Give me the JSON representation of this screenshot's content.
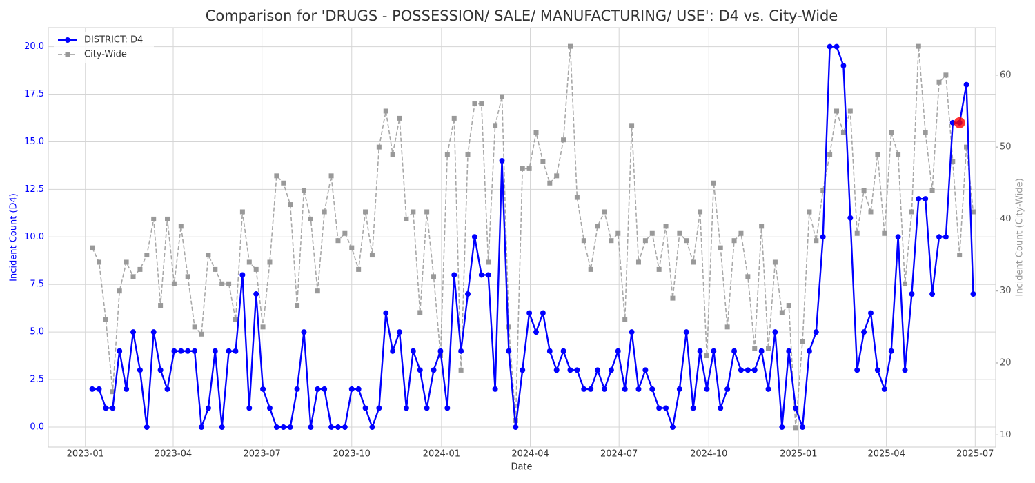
{
  "chart_data": {
    "type": "line",
    "title": "Comparison for 'DRUGS - POSSESSION/ SALE/ MANUFACTURING/ USE': D4 vs. City-Wide",
    "xlabel": "Date",
    "ylabel": "Incident Count (D4)",
    "y2label": "Incident Count (City-Wide)",
    "x": [
      "2023-01-08",
      "2023-01-15",
      "2023-01-22",
      "2023-01-29",
      "2023-02-05",
      "2023-02-12",
      "2023-02-19",
      "2023-02-26",
      "2023-03-05",
      "2023-03-12",
      "2023-03-19",
      "2023-03-26",
      "2023-04-02",
      "2023-04-09",
      "2023-04-16",
      "2023-04-23",
      "2023-04-30",
      "2023-05-07",
      "2023-05-14",
      "2023-05-21",
      "2023-05-28",
      "2023-06-04",
      "2023-06-11",
      "2023-06-18",
      "2023-06-25",
      "2023-07-02",
      "2023-07-09",
      "2023-07-16",
      "2023-07-23",
      "2023-07-30",
      "2023-08-06",
      "2023-08-13",
      "2023-08-20",
      "2023-08-27",
      "2023-09-03",
      "2023-09-10",
      "2023-09-17",
      "2023-09-24",
      "2023-10-01",
      "2023-10-08",
      "2023-10-15",
      "2023-10-22",
      "2023-10-29",
      "2023-11-05",
      "2023-11-12",
      "2023-11-19",
      "2023-11-26",
      "2023-12-03",
      "2023-12-10",
      "2023-12-17",
      "2023-12-24",
      "2023-12-31",
      "2024-01-07",
      "2024-01-14",
      "2024-01-21",
      "2024-01-28",
      "2024-02-04",
      "2024-02-11",
      "2024-02-18",
      "2024-02-25",
      "2024-03-03",
      "2024-03-10",
      "2024-03-17",
      "2024-03-24",
      "2024-03-31",
      "2024-04-07",
      "2024-04-14",
      "2024-04-21",
      "2024-04-28",
      "2024-05-05",
      "2024-05-12",
      "2024-05-19",
      "2024-05-26",
      "2024-06-02",
      "2024-06-09",
      "2024-06-16",
      "2024-06-23",
      "2024-06-30",
      "2024-07-07",
      "2024-07-14",
      "2024-07-21",
      "2024-07-28",
      "2024-08-04",
      "2024-08-11",
      "2024-08-18",
      "2024-08-25",
      "2024-09-01",
      "2024-09-08",
      "2024-09-15",
      "2024-09-22",
      "2024-09-29",
      "2024-10-06",
      "2024-10-13",
      "2024-10-20",
      "2024-10-27",
      "2024-11-03",
      "2024-11-10",
      "2024-11-17",
      "2024-11-24",
      "2024-12-01",
      "2024-12-08",
      "2024-12-15",
      "2024-12-22",
      "2024-12-29",
      "2025-01-05",
      "2025-01-12",
      "2025-01-19",
      "2025-01-26",
      "2025-02-02",
      "2025-02-09",
      "2025-02-16",
      "2025-02-23",
      "2025-03-02",
      "2025-03-09",
      "2025-03-16",
      "2025-03-23",
      "2025-03-30",
      "2025-04-06",
      "2025-04-13",
      "2025-04-20",
      "2025-04-27",
      "2025-05-04",
      "2025-05-11",
      "2025-05-18",
      "2025-05-25",
      "2025-06-01",
      "2025-06-08",
      "2025-06-15",
      "2025-06-22",
      "2025-06-29"
    ],
    "series": [
      {
        "name": "DISTRICT: D4",
        "color": "#0000ff",
        "values": [
          2,
          2,
          1,
          1,
          4,
          2,
          5,
          3,
          0,
          5,
          3,
          2,
          4,
          4,
          4,
          4,
          0,
          1,
          4,
          0,
          4,
          4,
          8,
          1,
          7,
          2,
          1,
          0,
          0,
          0,
          2,
          5,
          0,
          2,
          2,
          0,
          0,
          0,
          2,
          2,
          1,
          0,
          1,
          6,
          4,
          5,
          1,
          4,
          3,
          1,
          3,
          4,
          1,
          8,
          4,
          7,
          10,
          8,
          8,
          2,
          14,
          4,
          0,
          3,
          6,
          5,
          6,
          4,
          3,
          4,
          3,
          3,
          2,
          2,
          3,
          2,
          3,
          4,
          2,
          5,
          2,
          3,
          2,
          1,
          1,
          0,
          2,
          5,
          1,
          4,
          2,
          4,
          1,
          2,
          4,
          3,
          3,
          3,
          4,
          2,
          5,
          0,
          4,
          1,
          0,
          4,
          5,
          10,
          20,
          20,
          19,
          11,
          3,
          5,
          6,
          3,
          2,
          4,
          10,
          3,
          7,
          12,
          12,
          7,
          10,
          10,
          16,
          16,
          18,
          7
        ]
      },
      {
        "name": "City-Wide",
        "color": "#999999",
        "axis": "y2",
        "values": [
          36,
          34,
          26,
          16,
          30,
          34,
          32,
          33,
          35,
          40,
          28,
          40,
          31,
          39,
          32,
          25,
          24,
          35,
          33,
          31,
          31,
          26,
          41,
          34,
          33,
          25,
          34,
          46,
          45,
          42,
          28,
          44,
          40,
          30,
          41,
          46,
          37,
          38,
          36,
          33,
          41,
          35,
          50,
          55,
          49,
          54,
          40,
          41,
          27,
          41,
          32,
          21,
          49,
          54,
          19,
          49,
          56,
          56,
          34,
          53,
          57,
          25,
          12,
          47,
          47,
          52,
          48,
          45,
          46,
          51,
          64,
          43,
          37,
          33,
          39,
          41,
          37,
          38,
          26,
          53,
          34,
          37,
          38,
          33,
          39,
          29,
          38,
          37,
          34,
          41,
          21,
          45,
          36,
          25,
          37,
          38,
          32,
          22,
          39,
          22,
          34,
          27,
          28,
          11,
          23,
          41,
          37,
          44,
          49,
          55,
          52,
          55,
          38,
          44,
          41,
          49,
          38,
          52,
          49,
          31,
          41,
          64,
          52,
          44,
          59,
          60,
          48,
          35,
          50,
          41
        ]
      }
    ],
    "highlight": {
      "index": 127,
      "color": "#ff0000"
    },
    "xlim": [
      "2022-11-24",
      "2025-07-22"
    ],
    "xticks": [
      {
        "value": "2023-01-01",
        "label": "2023-01"
      },
      {
        "value": "2023-04-01",
        "label": "2023-04"
      },
      {
        "value": "2023-07-01",
        "label": "2023-07"
      },
      {
        "value": "2023-10-01",
        "label": "2023-10"
      },
      {
        "value": "2024-01-01",
        "label": "2024-01"
      },
      {
        "value": "2024-04-01",
        "label": "2024-04"
      },
      {
        "value": "2024-07-01",
        "label": "2024-07"
      },
      {
        "value": "2024-10-01",
        "label": "2024-10"
      },
      {
        "value": "2025-01-01",
        "label": "2025-01"
      },
      {
        "value": "2025-04-01",
        "label": "2025-04"
      },
      {
        "value": "2025-07-01",
        "label": "2025-07"
      }
    ],
    "ylim": [
      -1.05,
      21
    ],
    "yticks": [
      {
        "value": 0,
        "label": "0.0"
      },
      {
        "value": 2.5,
        "label": "2.5"
      },
      {
        "value": 5,
        "label": "5.0"
      },
      {
        "value": 7.5,
        "label": "7.5"
      },
      {
        "value": 10,
        "label": "10.0"
      },
      {
        "value": 12.5,
        "label": "12.5"
      },
      {
        "value": 15,
        "label": "15.0"
      },
      {
        "value": 17.5,
        "label": "17.5"
      },
      {
        "value": 20,
        "label": "20.0"
      }
    ],
    "y2lim": [
      8.3,
      66.6
    ],
    "y2ticks": [
      10,
      20,
      30,
      40,
      50,
      60
    ],
    "grid": true,
    "legend": "upper left"
  }
}
